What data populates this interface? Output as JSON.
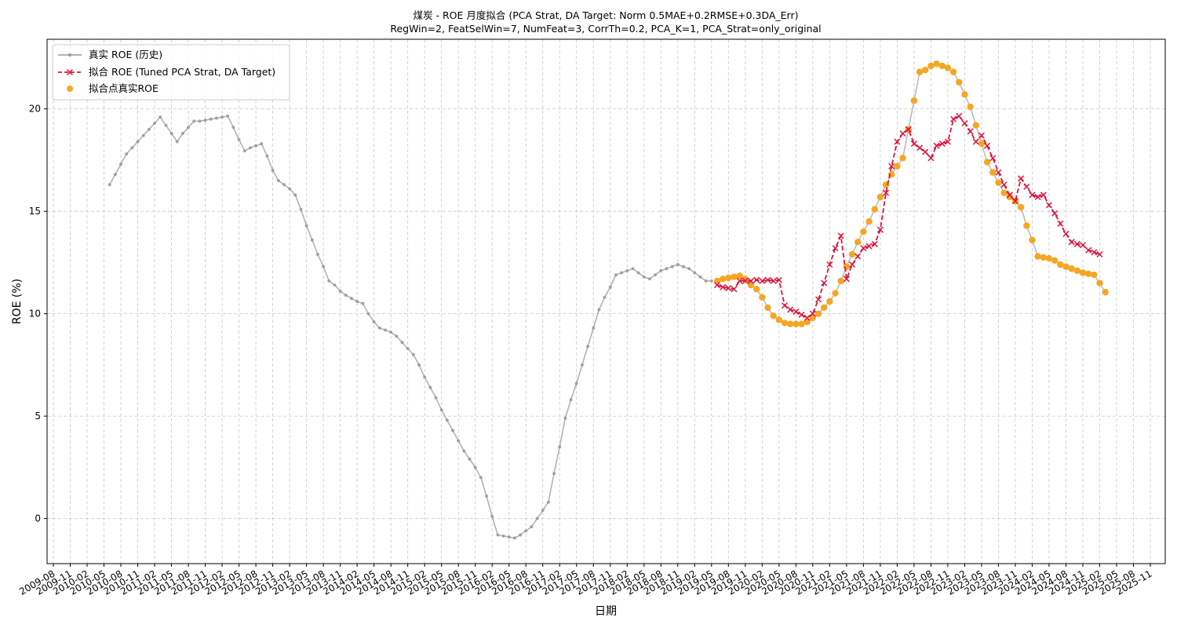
{
  "chart_data": {
    "type": "line",
    "title": "煤炭 - ROE 月度拟合 (PCA Strat, DA Target: Norm 0.5MAE+0.2RMSE+0.3DA_Err)",
    "subtitle": "RegWin=2, FeatSelWin=7, NumFeat=3, CorrTh=0.2, PCA_K=1, PCA_Strat=only_original",
    "xlabel": "日期",
    "ylabel": "ROE (%)",
    "ylim": [
      -2.2,
      23.4
    ],
    "y_ticks": [
      0,
      5,
      10,
      15,
      20
    ],
    "x_tick_labels": [
      "2009-08",
      "2009-11",
      "2010-02",
      "2010-05",
      "2010-08",
      "2010-11",
      "2011-02",
      "2011-05",
      "2011-08",
      "2011-11",
      "2012-02",
      "2012-05",
      "2012-08",
      "2012-11",
      "2013-02",
      "2013-05",
      "2013-08",
      "2013-11",
      "2014-02",
      "2014-05",
      "2014-08",
      "2014-11",
      "2015-02",
      "2015-05",
      "2015-08",
      "2015-11",
      "2016-02",
      "2016-05",
      "2016-08",
      "2016-11",
      "2017-02",
      "2017-05",
      "2017-08",
      "2017-11",
      "2018-02",
      "2018-05",
      "2018-08",
      "2018-11",
      "2019-02",
      "2019-05",
      "2019-08",
      "2019-11",
      "2020-02",
      "2020-05",
      "2020-08",
      "2020-11",
      "2021-02",
      "2021-05",
      "2021-08",
      "2021-11",
      "2022-02",
      "2022-05",
      "2022-08",
      "2022-11",
      "2023-02",
      "2023-05",
      "2023-08",
      "2023-11",
      "2024-02",
      "2024-05",
      "2024-08",
      "2024-11",
      "2025-02",
      "2025-05",
      "2025-08",
      "2025-11"
    ],
    "grid": true,
    "legend_position": "top-left",
    "series": [
      {
        "name": "真实 ROE (历史)",
        "style": "line-dot",
        "color": "#999999",
        "start": "2010-06",
        "values": [
          16.3,
          16.8,
          17.3,
          17.8,
          18.1,
          18.4,
          18.7,
          19.0,
          19.3,
          19.6,
          19.2,
          18.8,
          18.4,
          18.8,
          19.1,
          19.4,
          19.4,
          19.45,
          19.5,
          19.55,
          19.6,
          19.65,
          19.1,
          18.5,
          17.95,
          18.1,
          18.2,
          18.3,
          17.7,
          17.0,
          16.5,
          16.3,
          16.1,
          15.8,
          15.1,
          14.3,
          13.6,
          12.9,
          12.3,
          11.6,
          11.4,
          11.1,
          10.9,
          10.75,
          10.6,
          10.5,
          10.0,
          9.6,
          9.3,
          9.2,
          9.1,
          8.9,
          8.6,
          8.3,
          8.0,
          7.5,
          6.9,
          6.4,
          5.9,
          5.3,
          4.8,
          4.3,
          3.8,
          3.3,
          2.9,
          2.5,
          2.0,
          1.1,
          0.1,
          -0.8,
          -0.85,
          -0.9,
          -0.95,
          -0.8,
          -0.6,
          -0.4,
          0.0,
          0.4,
          0.8,
          2.2,
          3.5,
          4.9,
          5.8,
          6.6,
          7.5,
          8.4,
          9.3,
          10.2,
          10.8,
          11.3,
          11.9,
          12.0,
          12.1,
          12.2,
          12.0,
          11.8,
          11.7,
          11.9,
          12.1,
          12.2,
          12.3,
          12.4,
          12.3,
          12.2,
          12.0,
          11.8,
          11.6,
          11.6
        ]
      },
      {
        "name": "拟合点真实ROE",
        "style": "line-marker",
        "color": "#f5a623",
        "start": "2019-06",
        "values": [
          11.6,
          11.7,
          11.75,
          11.8,
          11.85,
          11.7,
          11.4,
          11.2,
          10.8,
          10.3,
          9.9,
          9.7,
          9.55,
          9.5,
          9.5,
          9.5,
          9.6,
          9.8,
          10.0,
          10.3,
          10.6,
          11.0,
          11.6,
          12.3,
          12.9,
          13.5,
          14.0,
          14.5,
          15.1,
          15.7,
          16.3,
          16.8,
          17.2,
          17.6,
          19.0,
          20.4,
          21.8,
          21.9,
          22.1,
          22.2,
          22.1,
          22.0,
          21.8,
          21.3,
          20.7,
          20.1,
          19.2,
          18.3,
          17.4,
          16.9,
          16.4,
          15.9,
          15.7,
          15.5,
          15.2,
          14.3,
          13.6,
          12.8,
          12.75,
          12.7,
          12.6,
          12.4,
          12.3,
          12.2,
          12.1,
          12.0,
          11.95,
          11.9,
          11.5,
          11.05
        ]
      },
      {
        "name": "拟合 ROE (Tuned PCA Strat, DA Target)",
        "style": "dashed-x",
        "color": "#dc143c",
        "start": "2019-06",
        "values": [
          11.4,
          11.3,
          11.25,
          11.2,
          11.6,
          11.6,
          11.6,
          11.65,
          11.6,
          11.65,
          11.6,
          11.65,
          10.4,
          10.2,
          10.1,
          9.95,
          9.8,
          10.0,
          10.7,
          11.5,
          12.4,
          13.2,
          13.8,
          11.7,
          12.4,
          12.8,
          13.2,
          13.3,
          13.4,
          14.1,
          15.9,
          17.2,
          18.4,
          18.8,
          19.0,
          18.3,
          18.1,
          17.9,
          17.6,
          18.2,
          18.3,
          18.4,
          19.5,
          19.65,
          19.3,
          18.9,
          18.4,
          18.7,
          18.2,
          17.6,
          16.9,
          16.3,
          15.8,
          15.5,
          16.6,
          16.2,
          15.8,
          15.7,
          15.8,
          15.3,
          14.9,
          14.4,
          13.9,
          13.5,
          13.4,
          13.35,
          13.1,
          13.0,
          12.9
        ]
      }
    ]
  }
}
